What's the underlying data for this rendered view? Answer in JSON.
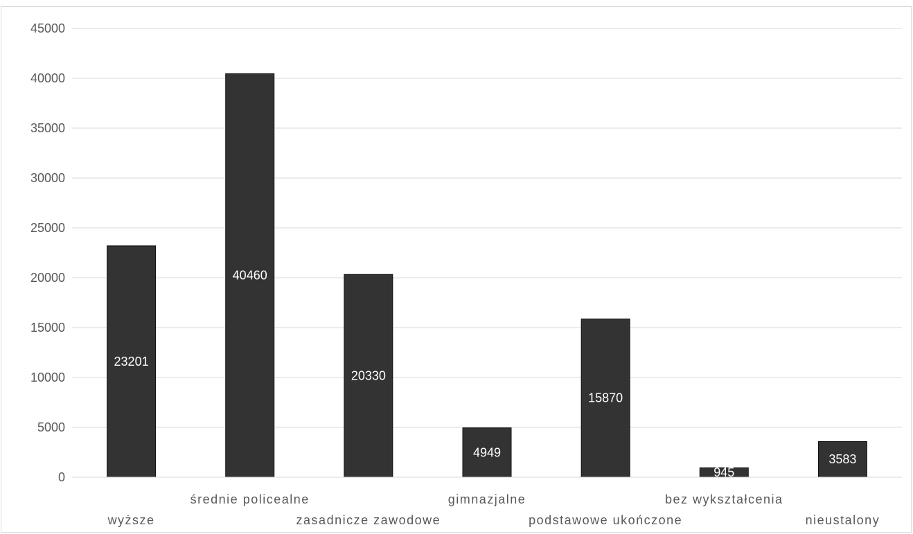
{
  "chart_data": {
    "type": "bar",
    "categories": [
      "wyższe",
      "średnie policealne",
      "zasadnicze zawodowe",
      "gimnazjalne",
      "podstawowe ukończone",
      "bez wykształcenia",
      "nieustalony"
    ],
    "values": [
      23201,
      40460,
      20330,
      4949,
      15870,
      945,
      3583
    ],
    "data_labels": [
      "23201",
      "40460",
      "20330",
      "4949",
      "15870",
      "945",
      "3583"
    ],
    "y_ticks": [
      "0",
      "5000",
      "10000",
      "15000",
      "20000",
      "25000",
      "30000",
      "35000",
      "40000",
      "45000"
    ],
    "ylim": [
      0,
      45000
    ],
    "grid": true,
    "legend": "none",
    "bar_color": "#333333",
    "grid_color": "#d9d9d9",
    "label_color": "#595959",
    "data_label_color": "#ffffff"
  }
}
